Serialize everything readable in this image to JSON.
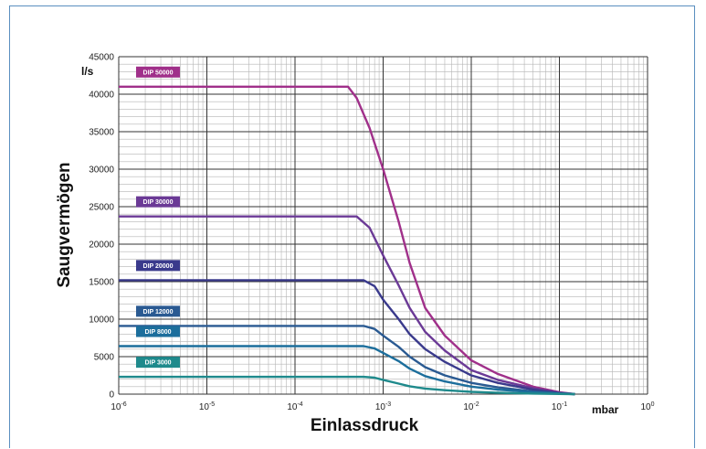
{
  "chart_data": {
    "type": "line",
    "xscale": "log",
    "xlim": [
      1e-06,
      1
    ],
    "ylim": [
      0,
      45000
    ],
    "ylabel": "Saugvermögen",
    "yunit": "l/s",
    "xlabel": "Einlassdruck",
    "xunit": "mbar",
    "x_tick_labels": [
      {
        "base": "10",
        "exp": "-6"
      },
      {
        "base": "10",
        "exp": "-5"
      },
      {
        "base": "10",
        "exp": "-4"
      },
      {
        "base": "10",
        "exp": "-3"
      },
      {
        "base": "10",
        "exp": "-2"
      },
      {
        "base": "10",
        "exp": "-1"
      },
      {
        "base": "10",
        "exp": "0"
      }
    ],
    "y_ticks": [
      0,
      5000,
      10000,
      15000,
      20000,
      25000,
      30000,
      35000,
      40000,
      45000
    ],
    "grid": true,
    "series": [
      {
        "name": "DIP 50000",
        "color": "#a0308a",
        "points": [
          [
            1e-06,
            41000
          ],
          [
            0.0004,
            41000
          ],
          [
            0.0005,
            39500
          ],
          [
            0.0007,
            35500
          ],
          [
            0.001,
            30000
          ],
          [
            0.0015,
            23000
          ],
          [
            0.002,
            17500
          ],
          [
            0.003,
            11500
          ],
          [
            0.005,
            7800
          ],
          [
            0.01,
            4500
          ],
          [
            0.02,
            2700
          ],
          [
            0.05,
            1000
          ],
          [
            0.1,
            250
          ],
          [
            0.15,
            0
          ]
        ]
      },
      {
        "name": "DIP 30000",
        "color": "#6b3a96",
        "points": [
          [
            1e-06,
            23700
          ],
          [
            0.0005,
            23700
          ],
          [
            0.0007,
            22200
          ],
          [
            0.001,
            18500
          ],
          [
            0.0015,
            14500
          ],
          [
            0.002,
            11500
          ],
          [
            0.003,
            8300
          ],
          [
            0.005,
            5800
          ],
          [
            0.01,
            3200
          ],
          [
            0.02,
            1900
          ],
          [
            0.05,
            800
          ],
          [
            0.1,
            200
          ],
          [
            0.15,
            0
          ]
        ]
      },
      {
        "name": "DIP 20000",
        "color": "#3a3a8c",
        "points": [
          [
            1e-06,
            15200
          ],
          [
            0.0006,
            15200
          ],
          [
            0.0008,
            14400
          ],
          [
            0.001,
            12600
          ],
          [
            0.0015,
            10000
          ],
          [
            0.002,
            8000
          ],
          [
            0.003,
            6000
          ],
          [
            0.005,
            4300
          ],
          [
            0.01,
            2500
          ],
          [
            0.02,
            1500
          ],
          [
            0.05,
            600
          ],
          [
            0.1,
            150
          ],
          [
            0.15,
            0
          ]
        ]
      },
      {
        "name": "DIP 12000",
        "color": "#2a5a92",
        "points": [
          [
            1e-06,
            9100
          ],
          [
            0.0006,
            9100
          ],
          [
            0.0008,
            8700
          ],
          [
            0.001,
            7800
          ],
          [
            0.0015,
            6300
          ],
          [
            0.002,
            5000
          ],
          [
            0.003,
            3600
          ],
          [
            0.005,
            2500
          ],
          [
            0.01,
            1500
          ],
          [
            0.02,
            900
          ],
          [
            0.05,
            350
          ],
          [
            0.1,
            100
          ],
          [
            0.15,
            0
          ]
        ]
      },
      {
        "name": "DIP 8000",
        "color": "#1c6e9c",
        "points": [
          [
            1e-06,
            6400
          ],
          [
            0.0006,
            6400
          ],
          [
            0.0008,
            6100
          ],
          [
            0.001,
            5500
          ],
          [
            0.0015,
            4400
          ],
          [
            0.002,
            3400
          ],
          [
            0.003,
            2400
          ],
          [
            0.005,
            1700
          ],
          [
            0.01,
            1000
          ],
          [
            0.02,
            600
          ],
          [
            0.05,
            250
          ],
          [
            0.1,
            70
          ],
          [
            0.15,
            0
          ]
        ]
      },
      {
        "name": "DIP 3000",
        "color": "#1f8a8c",
        "points": [
          [
            1e-06,
            2300
          ],
          [
            0.0006,
            2300
          ],
          [
            0.0008,
            2200
          ],
          [
            0.001,
            1900
          ],
          [
            0.0015,
            1400
          ],
          [
            0.002,
            1050
          ],
          [
            0.003,
            750
          ],
          [
            0.005,
            520
          ],
          [
            0.01,
            300
          ],
          [
            0.02,
            180
          ],
          [
            0.05,
            70
          ],
          [
            0.1,
            20
          ],
          [
            0.15,
            0
          ]
        ]
      }
    ]
  }
}
